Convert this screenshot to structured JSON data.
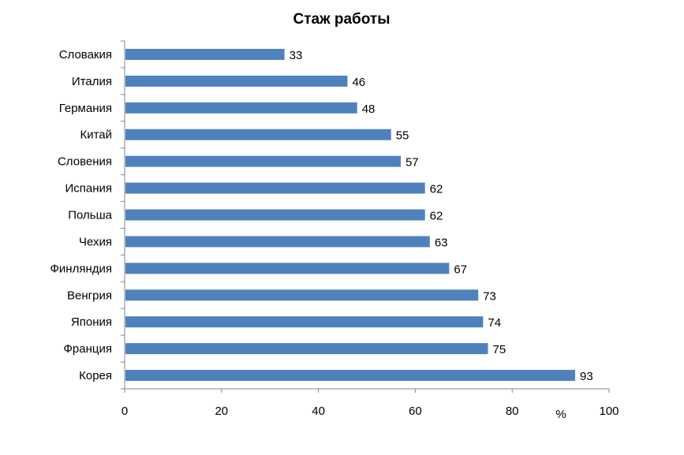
{
  "chart_data": {
    "type": "bar",
    "orientation": "horizontal",
    "title": "Стаж работы",
    "categories": [
      "Словакия",
      "Италия",
      "Германия",
      "Китай",
      "Словения",
      "Испания",
      "Польша",
      "Чехия",
      "Финляндия",
      "Венгрия",
      "Япония",
      "Франция",
      "Корея"
    ],
    "values": [
      33,
      46,
      48,
      55,
      57,
      62,
      62,
      63,
      67,
      73,
      74,
      75,
      93
    ],
    "xlabel": "%",
    "ylabel": "",
    "xlim": [
      0,
      100
    ],
    "xticks": [
      0,
      20,
      40,
      60,
      80,
      100
    ],
    "grid": false,
    "legend": "none",
    "bar_color": "#4F81BD",
    "data_labels": true
  }
}
